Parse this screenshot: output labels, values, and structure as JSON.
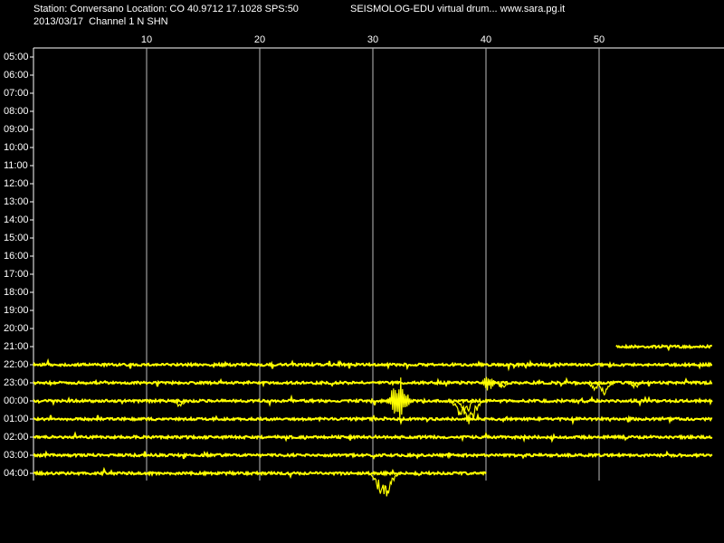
{
  "chart_data": {
    "type": "drum",
    "header": [
      "Station: Conversano Location: CO 40.9712 17.1028 SPS:50",
      "SEISMOLOG-EDU virtual drum... www.sara.pg.it",
      "2013/03/17  Channel 1 N SHN"
    ],
    "xlim": [
      0,
      60
    ],
    "xticks": [
      10,
      20,
      30,
      40,
      50
    ],
    "grid": true,
    "rows": [
      "05:00",
      "06:00",
      "07:00",
      "08:00",
      "09:00",
      "10:00",
      "11:00",
      "12:00",
      "13:00",
      "14:00",
      "15:00",
      "16:00",
      "17:00",
      "18:00",
      "19:00",
      "20:00",
      "21:00",
      "22:00",
      "23:00",
      "00:00",
      "01:00",
      "02:00",
      "03:00",
      "04:00"
    ],
    "trace_color": "#ffff00",
    "traces": [
      {
        "row": "21:00",
        "start": 51.5,
        "end": 60
      },
      {
        "row": "22:00",
        "start": 0,
        "end": 60
      },
      {
        "row": "23:00",
        "start": 0,
        "end": 60
      },
      {
        "row": "00:00",
        "start": 0,
        "end": 60
      },
      {
        "row": "01:00",
        "start": 0,
        "end": 60
      },
      {
        "row": "02:00",
        "start": 0,
        "end": 60
      },
      {
        "row": "03:00",
        "start": 0,
        "end": 60
      },
      {
        "row": "04:00",
        "start": 0,
        "end": 40
      }
    ],
    "events": [
      {
        "row": "23:00",
        "minute": 40.2,
        "amplitude": 0.5
      },
      {
        "row": "23:00",
        "minute": 41.5,
        "amplitude": 0.3
      },
      {
        "row": "23:00",
        "minute": 49.6,
        "amplitude": 0.4
      },
      {
        "row": "23:00",
        "minute": 50.4,
        "amplitude": 0.7
      },
      {
        "row": "23:00",
        "minute": 53.2,
        "amplitude": 0.3
      },
      {
        "row": "00:00",
        "minute": 12.9,
        "amplitude": 0.4
      },
      {
        "row": "00:00",
        "minute": 32.3,
        "amplitude": 1.5
      },
      {
        "row": "00:00",
        "minute": 37.9,
        "amplitude": 1.3
      },
      {
        "row": "00:00",
        "minute": 38.6,
        "amplitude": 1.4
      },
      {
        "row": "04:00",
        "minute": 31.0,
        "amplitude": 1.7
      }
    ]
  }
}
